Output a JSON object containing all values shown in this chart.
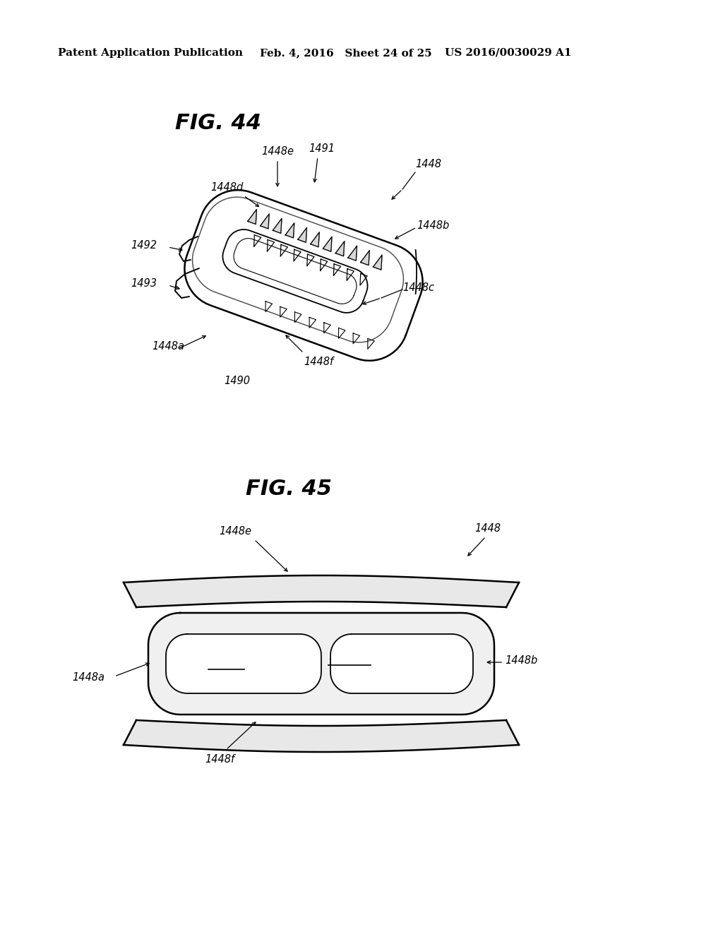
{
  "bg_color": "#ffffff",
  "header_left": "Patent Application Publication",
  "header_mid": "Feb. 4, 2016   Sheet 24 of 25",
  "header_right": "US 2016/0030029 A1",
  "fig44_title": "FIG. 44",
  "fig45_title": "FIG. 45",
  "header_fontsize": 11,
  "title_fontsize": 22,
  "label_fontsize": 10.5
}
